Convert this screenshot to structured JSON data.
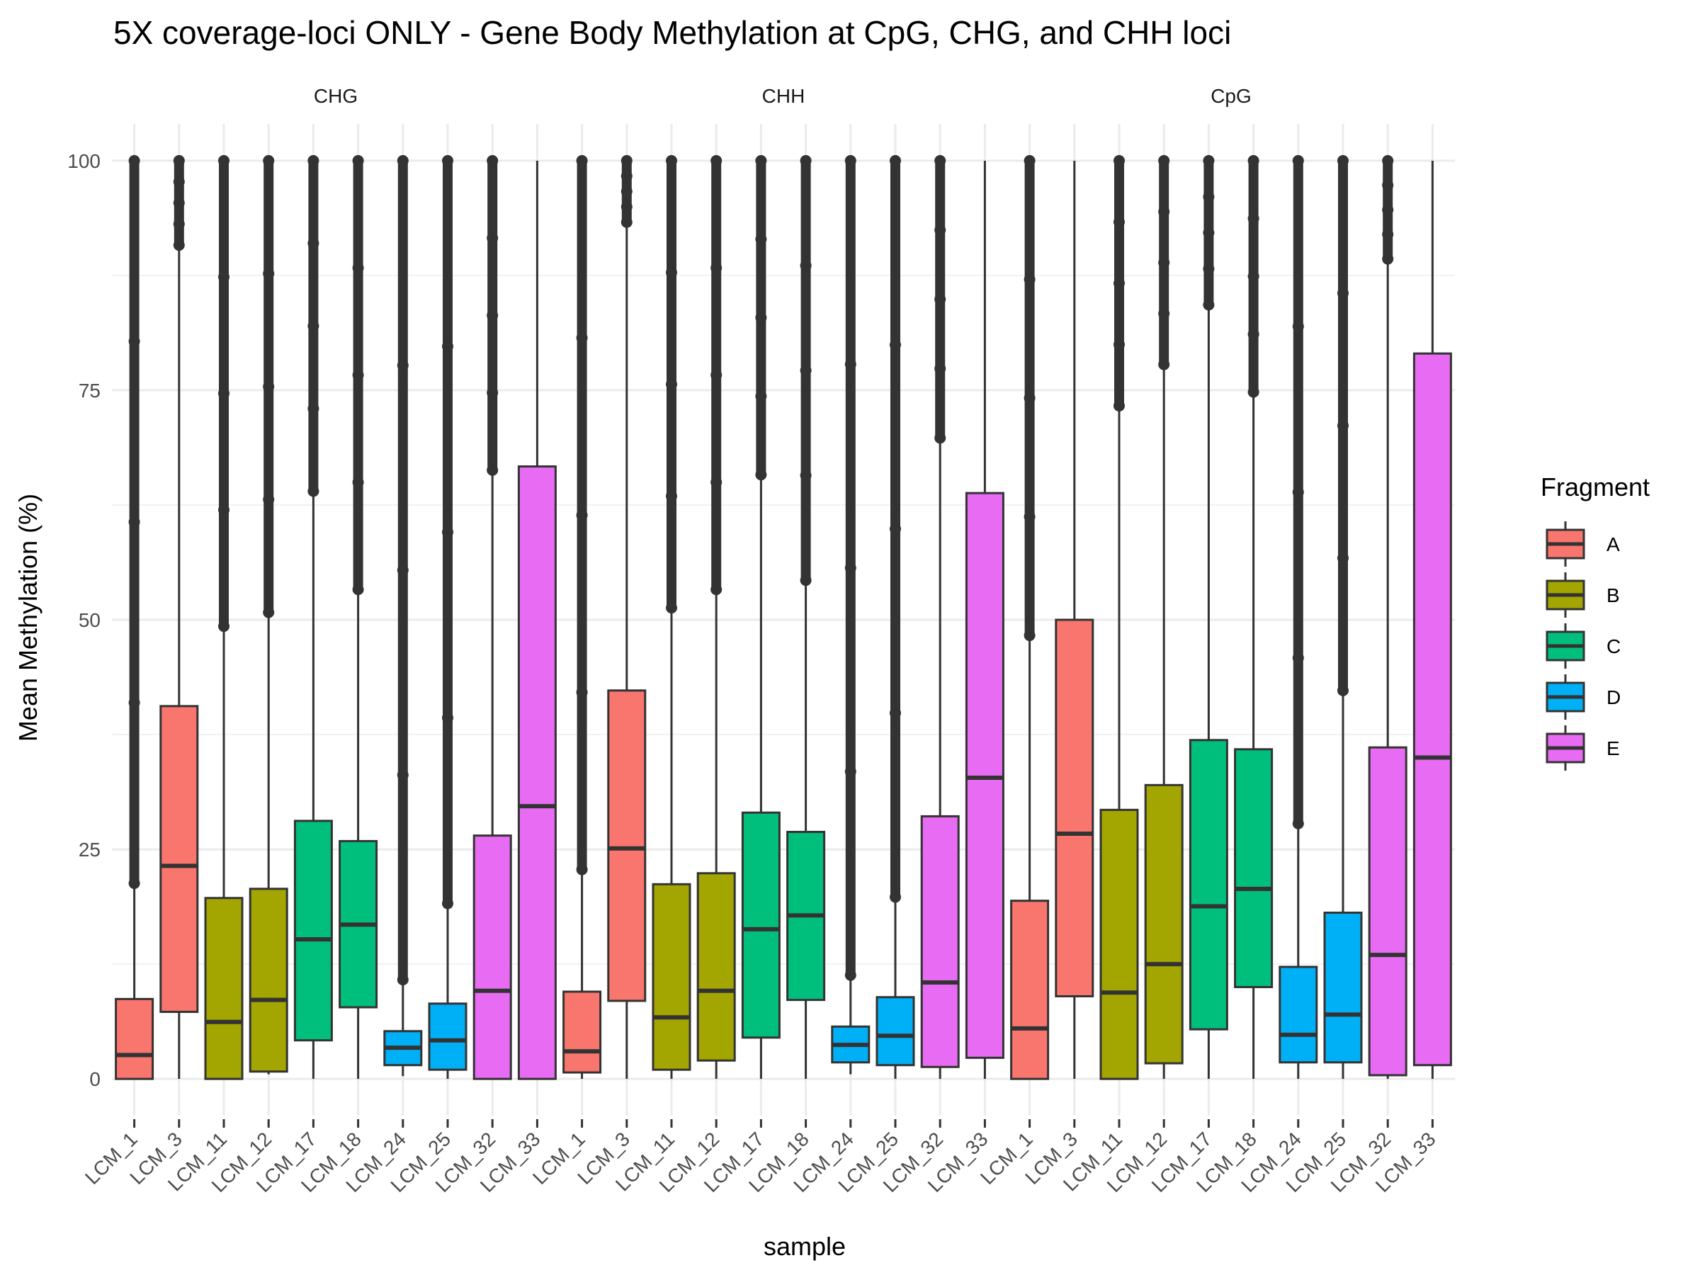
{
  "chart_data": {
    "type": "boxplot",
    "title": "5X coverage-loci ONLY - Gene Body Methylation at CpG, CHG, and CHH loci",
    "xlabel": "sample",
    "ylabel": "Mean Methylation (%)",
    "ylim": [
      -4,
      104
    ],
    "yticks": [
      0,
      25,
      50,
      75,
      100
    ],
    "grid": true,
    "legend": {
      "title": "Fragment",
      "position": "right",
      "entries": [
        {
          "name": "A",
          "color": "#F8766D"
        },
        {
          "name": "B",
          "color": "#A3A500"
        },
        {
          "name": "C",
          "color": "#00BF7D"
        },
        {
          "name": "D",
          "color": "#00B0F6"
        },
        {
          "name": "E",
          "color": "#E76BF3"
        }
      ]
    },
    "samples": [
      "LCM_1",
      "LCM_3",
      "LCM_11",
      "LCM_12",
      "LCM_17",
      "LCM_18",
      "LCM_24",
      "LCM_25",
      "LCM_32",
      "LCM_33"
    ],
    "fragment_of_sample": [
      "A",
      "A",
      "B",
      "B",
      "C",
      "C",
      "D",
      "D",
      "E",
      "E"
    ],
    "facets": [
      {
        "name": "CHG",
        "boxes": [
          {
            "sample": "LCM_1",
            "lower": 0,
            "q1": 0,
            "median": 2.6,
            "q3": 8.7,
            "upper": 21,
            "outliers_from": 21.3
          },
          {
            "sample": "LCM_3",
            "lower": 0,
            "q1": 7.3,
            "median": 23.2,
            "q3": 40.6,
            "upper": 90.5,
            "outliers_from": 90.8
          },
          {
            "sample": "LCM_11",
            "lower": 0,
            "q1": 0,
            "median": 6.2,
            "q3": 19.7,
            "upper": 49,
            "outliers_from": 49.3
          },
          {
            "sample": "LCM_12",
            "lower": 0.5,
            "q1": 0.8,
            "median": 8.6,
            "q3": 20.7,
            "upper": 50.5,
            "outliers_from": 50.8
          },
          {
            "sample": "LCM_17",
            "lower": 0,
            "q1": 4.2,
            "median": 15.2,
            "q3": 28.1,
            "upper": 63.7,
            "outliers_from": 64
          },
          {
            "sample": "LCM_18",
            "lower": 0,
            "q1": 7.8,
            "median": 16.8,
            "q3": 25.9,
            "upper": 53,
            "outliers_from": 53.3
          },
          {
            "sample": "LCM_24",
            "lower": 0.3,
            "q1": 1.5,
            "median": 3.4,
            "q3": 5.2,
            "upper": 10.5,
            "outliers_from": 10.8
          },
          {
            "sample": "LCM_25",
            "lower": 0,
            "q1": 1,
            "median": 4.2,
            "q3": 8.2,
            "upper": 18.8,
            "outliers_from": 19.1
          },
          {
            "sample": "LCM_32",
            "lower": 0,
            "q1": 0,
            "median": 9.6,
            "q3": 26.5,
            "upper": 66,
            "outliers_from": 66.3
          },
          {
            "sample": "LCM_33",
            "lower": 0,
            "q1": 0,
            "median": 29.7,
            "q3": 66.7,
            "upper": 100,
            "outliers_from": null
          }
        ]
      },
      {
        "name": "CHH",
        "boxes": [
          {
            "sample": "LCM_1",
            "lower": 0,
            "q1": 0.7,
            "median": 3.0,
            "q3": 9.5,
            "upper": 22.5,
            "outliers_from": 22.8
          },
          {
            "sample": "LCM_3",
            "lower": 0,
            "q1": 8.5,
            "median": 25.1,
            "q3": 42.3,
            "upper": 93,
            "outliers_from": 93.3
          },
          {
            "sample": "LCM_11",
            "lower": 0,
            "q1": 1,
            "median": 6.7,
            "q3": 21.2,
            "upper": 51,
            "outliers_from": 51.3
          },
          {
            "sample": "LCM_12",
            "lower": 0,
            "q1": 2,
            "median": 9.6,
            "q3": 22.4,
            "upper": 53,
            "outliers_from": 53.3
          },
          {
            "sample": "LCM_17",
            "lower": 0,
            "q1": 4.5,
            "median": 16.3,
            "q3": 29,
            "upper": 65.5,
            "outliers_from": 65.8
          },
          {
            "sample": "LCM_18",
            "lower": 0,
            "q1": 8.6,
            "median": 17.8,
            "q3": 26.9,
            "upper": 54,
            "outliers_from": 54.3
          },
          {
            "sample": "LCM_24",
            "lower": 0.5,
            "q1": 1.8,
            "median": 3.7,
            "q3": 5.7,
            "upper": 11,
            "outliers_from": 11.3
          },
          {
            "sample": "LCM_25",
            "lower": 0,
            "q1": 1.5,
            "median": 4.7,
            "q3": 8.9,
            "upper": 19.5,
            "outliers_from": 19.8
          },
          {
            "sample": "LCM_32",
            "lower": 0,
            "q1": 1.3,
            "median": 10.5,
            "q3": 28.6,
            "upper": 69.5,
            "outliers_from": 69.8
          },
          {
            "sample": "LCM_33",
            "lower": 0,
            "q1": 2.3,
            "median": 32.8,
            "q3": 63.8,
            "upper": 100,
            "outliers_from": null
          }
        ]
      },
      {
        "name": "CpG",
        "boxes": [
          {
            "sample": "LCM_1",
            "lower": 0,
            "q1": 0,
            "median": 5.5,
            "q3": 19.4,
            "upper": 48,
            "outliers_from": 48.3
          },
          {
            "sample": "LCM_3",
            "lower": 0,
            "q1": 9,
            "median": 26.7,
            "q3": 50,
            "upper": 100,
            "outliers_from": null
          },
          {
            "sample": "LCM_11",
            "lower": 0,
            "q1": 0,
            "median": 9.4,
            "q3": 29.3,
            "upper": 73,
            "outliers_from": 73.3
          },
          {
            "sample": "LCM_12",
            "lower": 0,
            "q1": 1.7,
            "median": 12.5,
            "q3": 32,
            "upper": 77.5,
            "outliers_from": 77.8
          },
          {
            "sample": "LCM_17",
            "lower": 0,
            "q1": 5.4,
            "median": 18.8,
            "q3": 36.9,
            "upper": 84,
            "outliers_from": 84.3
          },
          {
            "sample": "LCM_18",
            "lower": 0,
            "q1": 10,
            "median": 20.7,
            "q3": 35.9,
            "upper": 74.5,
            "outliers_from": 74.8
          },
          {
            "sample": "LCM_24",
            "lower": 0,
            "q1": 1.8,
            "median": 4.8,
            "q3": 12.2,
            "upper": 27.5,
            "outliers_from": 27.8
          },
          {
            "sample": "LCM_25",
            "lower": 0,
            "q1": 1.8,
            "median": 7.0,
            "q3": 18.1,
            "upper": 42,
            "outliers_from": 42.3
          },
          {
            "sample": "LCM_32",
            "lower": 0,
            "q1": 0.4,
            "median": 13.5,
            "q3": 36.1,
            "upper": 89,
            "outliers_from": 89.3
          },
          {
            "sample": "LCM_33",
            "lower": 0,
            "q1": 1.5,
            "median": 35.0,
            "q3": 79,
            "upper": 100,
            "outliers_from": null
          }
        ]
      }
    ]
  }
}
